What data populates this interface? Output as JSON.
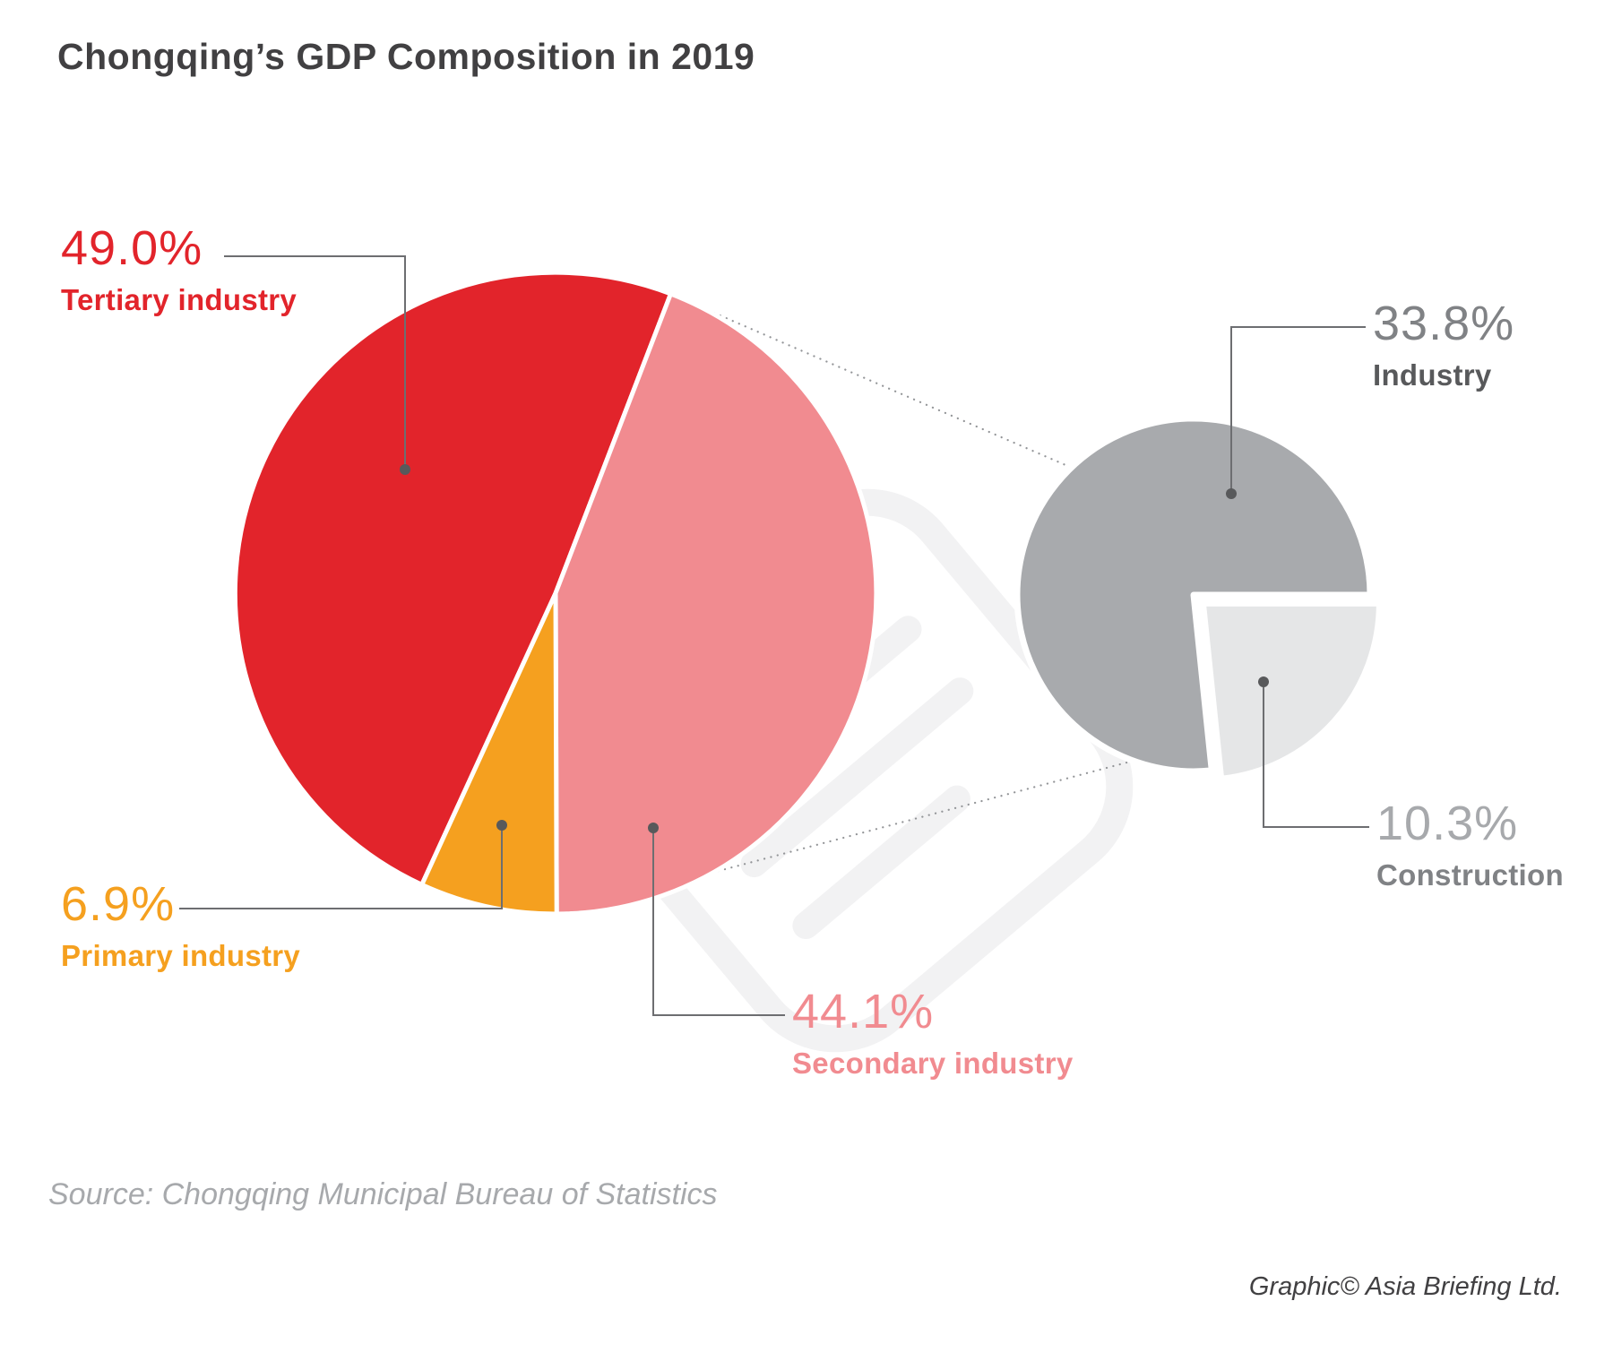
{
  "title": "Chongqing’s GDP Composition in 2019",
  "source": "Source: Chongqing Municipal Bureau of Statistics",
  "credit": "Graphic© Asia Briefing Ltd.",
  "labels": {
    "tertiary": {
      "percent": "49.0%",
      "name": "Tertiary industry"
    },
    "primary": {
      "percent": "6.9%",
      "name": "Primary industry"
    },
    "secondary": {
      "percent": "44.1%",
      "name": "Secondary industry"
    },
    "industry": {
      "percent": "33.8%",
      "name": "Industry"
    },
    "construction": {
      "percent": "10.3%",
      "name": "Construction"
    }
  },
  "colors": {
    "red": "#e2242b",
    "pink": "#f18b90",
    "orange": "#f5a01f",
    "gray": "#a8aaad",
    "light-gray": "#e5e6e7",
    "label-gray": "#808285",
    "dark-gray": "#58595b",
    "muted-gray": "#a7a9ac",
    "line": "#6d6e71",
    "dotted": "#939598",
    "title": "#414042",
    "watermark": "#f2f2f3"
  },
  "chart_data": [
    {
      "type": "pie",
      "name": "gdp-composition",
      "title": "Chongqing’s GDP Composition in 2019",
      "units": "% of GDP",
      "start_angle": 204.64,
      "slices": [
        {
          "label": "Tertiary industry",
          "value": 49.0,
          "color": "#e2242b"
        },
        {
          "label": "Secondary industry",
          "value": 44.1,
          "color": "#f18b90"
        },
        {
          "label": "Primary industry",
          "value": 6.9,
          "color": "#f5a01f"
        }
      ]
    },
    {
      "type": "pie",
      "name": "secondary-industry-breakdown",
      "title": "Breakdown of secondary industry",
      "units": "% of GDP",
      "start_angle": 174.08,
      "slices": [
        {
          "label": "Industry",
          "value": 33.8,
          "color": "#a8aaad"
        },
        {
          "label": "Construction",
          "value": 10.3,
          "color": "#e5e6e7",
          "exploded": true
        }
      ]
    }
  ]
}
